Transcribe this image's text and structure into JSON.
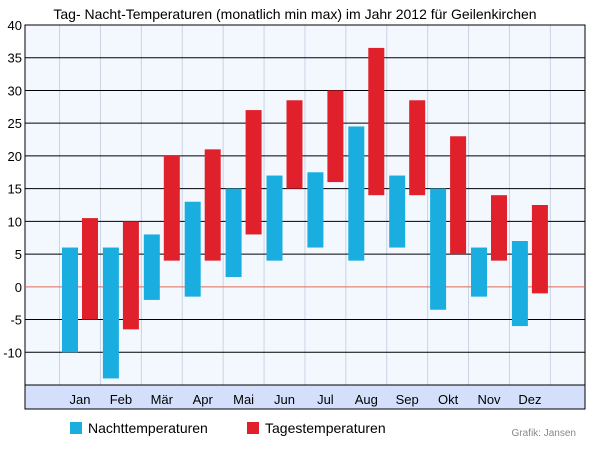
{
  "chart_data": {
    "type": "bar",
    "title": "Tag- Nacht-Temperaturen (monatlich min max) im Jahr 2012 für Geilenkirchen",
    "categories": [
      "Jan",
      "Feb",
      "Mär",
      "Apr",
      "Mai",
      "Jun",
      "Jul",
      "Aug",
      "Sep",
      "Okt",
      "Nov",
      "Dez"
    ],
    "series": [
      {
        "name": "Nachttemperaturen",
        "color": "#1aaee0",
        "ranges": [
          [
            -10,
            6
          ],
          [
            -14,
            6
          ],
          [
            -2,
            8
          ],
          [
            -1.5,
            13
          ],
          [
            1.5,
            15
          ],
          [
            4,
            17
          ],
          [
            6,
            17.5
          ],
          [
            4,
            24.5
          ],
          [
            6,
            17
          ],
          [
            -3.5,
            15
          ],
          [
            -1.5,
            6
          ],
          [
            -6,
            7
          ]
        ]
      },
      {
        "name": "Tagestemperaturen",
        "color": "#e0202a",
        "ranges": [
          [
            -5,
            10.5
          ],
          [
            -6.5,
            10
          ],
          [
            4,
            20
          ],
          [
            4,
            21
          ],
          [
            8,
            27
          ],
          [
            15,
            28.5
          ],
          [
            16,
            30
          ],
          [
            14,
            36.5
          ],
          [
            14,
            28.5
          ],
          [
            5,
            23
          ],
          [
            4,
            14
          ],
          [
            -1,
            12.5
          ]
        ]
      }
    ],
    "ylim": [
      -15,
      40
    ],
    "yticks": [
      -10,
      -5,
      0,
      5,
      10,
      15,
      20,
      25,
      30,
      35,
      40
    ],
    "grid": true,
    "legend_position": "bottom-left",
    "credit": "Grafik: Jansen"
  }
}
